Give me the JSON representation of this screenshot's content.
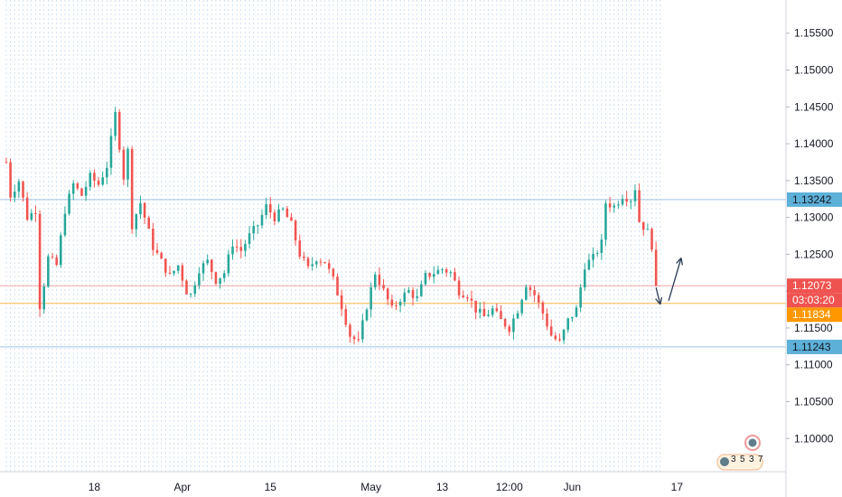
{
  "chart_data": {
    "type": "candlestick",
    "title": "",
    "xlabel": "",
    "ylabel": "",
    "ylim": [
      1.0955,
      1.1595
    ],
    "grid": {
      "horizontal": false,
      "vertical_dashed": true
    },
    "y_ticks": [
      {
        "value": 1.155,
        "label": "1.15500"
      },
      {
        "value": 1.15,
        "label": "1.15000"
      },
      {
        "value": 1.145,
        "label": "1.14500"
      },
      {
        "value": 1.14,
        "label": "1.14000"
      },
      {
        "value": 1.135,
        "label": "1.13500"
      },
      {
        "value": 1.13,
        "label": "1.13000"
      },
      {
        "value": 1.125,
        "label": "1.12500"
      },
      {
        "value": 1.12,
        "label": "1.12000"
      },
      {
        "value": 1.115,
        "label": "1.11500"
      },
      {
        "value": 1.11,
        "label": "1.11000"
      },
      {
        "value": 1.105,
        "label": "1.10500"
      },
      {
        "value": 1.1,
        "label": "1.10000"
      }
    ],
    "x_ticks": [
      {
        "index": 21,
        "label": "18"
      },
      {
        "index": 42,
        "label": "Apr"
      },
      {
        "index": 63,
        "label": "15"
      },
      {
        "index": 87,
        "label": "May"
      },
      {
        "index": 104,
        "label": "13"
      },
      {
        "index": 120,
        "label": "12:00"
      },
      {
        "index": 135,
        "label": "Jun"
      },
      {
        "index": 160,
        "label": "17"
      }
    ],
    "x_range": [
      -1.5,
      186
    ],
    "price_points": [
      [
        0,
        1.1375
      ],
      [
        1,
        1.133
      ],
      [
        3,
        1.135
      ],
      [
        5,
        1.13
      ],
      [
        7,
        1.131
      ],
      [
        8,
        1.118
      ],
      [
        9,
        1.121
      ],
      [
        10,
        1.1245
      ],
      [
        12,
        1.1235
      ],
      [
        14,
        1.131
      ],
      [
        16,
        1.1345
      ],
      [
        18,
        1.133
      ],
      [
        20,
        1.1355
      ],
      [
        22,
        1.1345
      ],
      [
        24,
        1.137
      ],
      [
        26,
        1.144
      ],
      [
        28,
        1.1355
      ],
      [
        29,
        1.139
      ],
      [
        30,
        1.129
      ],
      [
        32,
        1.132
      ],
      [
        33,
        1.13
      ],
      [
        35,
        1.126
      ],
      [
        37,
        1.124
      ],
      [
        39,
        1.122
      ],
      [
        41,
        1.1235
      ],
      [
        43,
        1.12
      ],
      [
        44,
        1.1195
      ],
      [
        46,
        1.123
      ],
      [
        48,
        1.124
      ],
      [
        50,
        1.1215
      ],
      [
        52,
        1.1225
      ],
      [
        54,
        1.1265
      ],
      [
        56,
        1.1255
      ],
      [
        58,
        1.1275
      ],
      [
        60,
        1.129
      ],
      [
        62,
        1.1315
      ],
      [
        64,
        1.13
      ],
      [
        66,
        1.131
      ],
      [
        68,
        1.129
      ],
      [
        70,
        1.125
      ],
      [
        72,
        1.123
      ],
      [
        74,
        1.1245
      ],
      [
        76,
        1.124
      ],
      [
        78,
        1.1215
      ],
      [
        80,
        1.118
      ],
      [
        82,
        1.114
      ],
      [
        84,
        1.113
      ],
      [
        86,
        1.118
      ],
      [
        88,
        1.1225
      ],
      [
        90,
        1.12
      ],
      [
        92,
        1.1175
      ],
      [
        94,
        1.119
      ],
      [
        96,
        1.12
      ],
      [
        98,
        1.119
      ],
      [
        100,
        1.122
      ],
      [
        102,
        1.1225
      ],
      [
        104,
        1.123
      ],
      [
        106,
        1.1225
      ],
      [
        108,
        1.12
      ],
      [
        110,
        1.1195
      ],
      [
        112,
        1.1175
      ],
      [
        114,
        1.1165
      ],
      [
        116,
        1.1175
      ],
      [
        118,
        1.116
      ],
      [
        120,
        1.115
      ],
      [
        122,
        1.1175
      ],
      [
        124,
        1.121
      ],
      [
        126,
        1.1195
      ],
      [
        128,
        1.117
      ],
      [
        130,
        1.114
      ],
      [
        132,
        1.113
      ],
      [
        134,
        1.116
      ],
      [
        136,
        1.1175
      ],
      [
        138,
        1.1235
      ],
      [
        140,
        1.1245
      ],
      [
        142,
        1.1265
      ],
      [
        143,
        1.132
      ],
      [
        145,
        1.1315
      ],
      [
        147,
        1.133
      ],
      [
        149,
        1.1325
      ],
      [
        150,
        1.134
      ],
      [
        151,
        1.1295
      ],
      [
        153,
        1.128
      ],
      [
        154,
        1.1262
      ],
      [
        155,
        1.1207
      ]
    ],
    "horizontal_lines": [
      {
        "value": 1.13242,
        "label": "1.13242",
        "color": "#a0c4e6",
        "tag_color": "#5db0d8"
      },
      {
        "value": 1.12073,
        "label": "1.12073",
        "color": "#f4a6a6",
        "tag_color": "#ef5350"
      },
      {
        "value": 1.11834,
        "label": "1.11834",
        "color": "#ffb74d",
        "tag_color": "#ff9800"
      },
      {
        "value": 1.11243,
        "label": "1.11243",
        "color": "#a0c4e6",
        "tag_color": "#5db0d8"
      }
    ],
    "countdown": "03:03:20",
    "annotations": [
      {
        "type": "arrow",
        "from": [
          155,
          1.1205
        ],
        "to": [
          156,
          1.1182
        ]
      },
      {
        "type": "arrow",
        "from": [
          158,
          1.1187
        ],
        "to": [
          161,
          1.1245
        ]
      }
    ],
    "event_badges": [
      "3",
      "5",
      "3",
      "7"
    ],
    "colors": {
      "up": "#26a69a",
      "down": "#ef5350",
      "arrow": "#2a3a55",
      "grid": "#7fb3e6"
    }
  }
}
